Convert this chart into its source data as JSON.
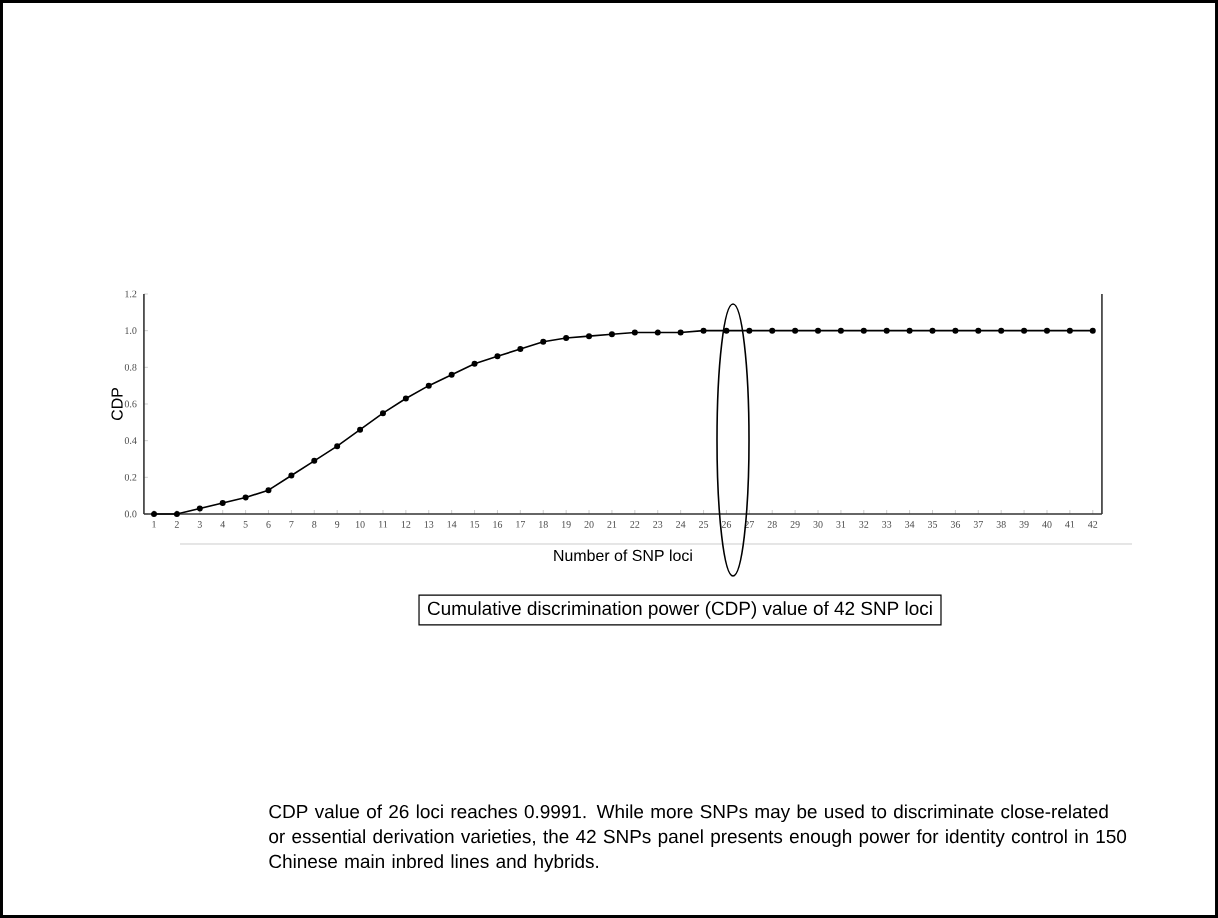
{
  "chart_data": {
    "type": "line",
    "title": "Cumulative discrimination power (CDP) value of 42 SNP loci",
    "xlabel": "Number of SNP loci",
    "ylabel": "CDP",
    "categories": [
      "1",
      "2",
      "3",
      "4",
      "5",
      "6",
      "7",
      "8",
      "9",
      "10",
      "11",
      "12",
      "13",
      "14",
      "15",
      "16",
      "17",
      "18",
      "19",
      "20",
      "21",
      "22",
      "23",
      "24",
      "25",
      "26",
      "27",
      "28",
      "29",
      "30",
      "31",
      "32",
      "33",
      "34",
      "35",
      "36",
      "37",
      "38",
      "39",
      "40",
      "41",
      "42"
    ],
    "series": [
      {
        "color": "#000000",
        "values": [
          0.0,
          0.0,
          0.03,
          0.06,
          0.09,
          0.13,
          0.21,
          0.29,
          0.37,
          0.46,
          0.55,
          0.63,
          0.7,
          0.76,
          0.82,
          0.86,
          0.9,
          0.94,
          0.96,
          0.97,
          0.98,
          0.99,
          0.99,
          0.99,
          1.0,
          1.0,
          1.0,
          1.0,
          1.0,
          1.0,
          1.0,
          1.0,
          1.0,
          1.0,
          1.0,
          1.0,
          1.0,
          1.0,
          1.0,
          1.0,
          1.0,
          1.0
        ]
      }
    ],
    "ylim": [
      0,
      1.2
    ],
    "yticks": [
      {
        "value": 0,
        "label": "0.0"
      },
      {
        "value": 0.2,
        "label": "0.2"
      },
      {
        "value": 0.4,
        "label": "0.4"
      },
      {
        "value": 0.6,
        "label": "0.6"
      },
      {
        "value": 0.8,
        "label": "0.8"
      },
      {
        "value": 1.0,
        "label": "1.0"
      },
      {
        "value": 1.2,
        "label": "1.2"
      }
    ],
    "marker": "circle",
    "line_style": "solid",
    "grid": false,
    "annotations": [
      "CDP value of 26 loci reaches 0.9991. While more SNPs may be used to discriminate close-related or essential derivation varieties, the 42 SNPs panel presents enough power for identity control in 150 Chinese main inbred lines and hybrids."
    ]
  }
}
